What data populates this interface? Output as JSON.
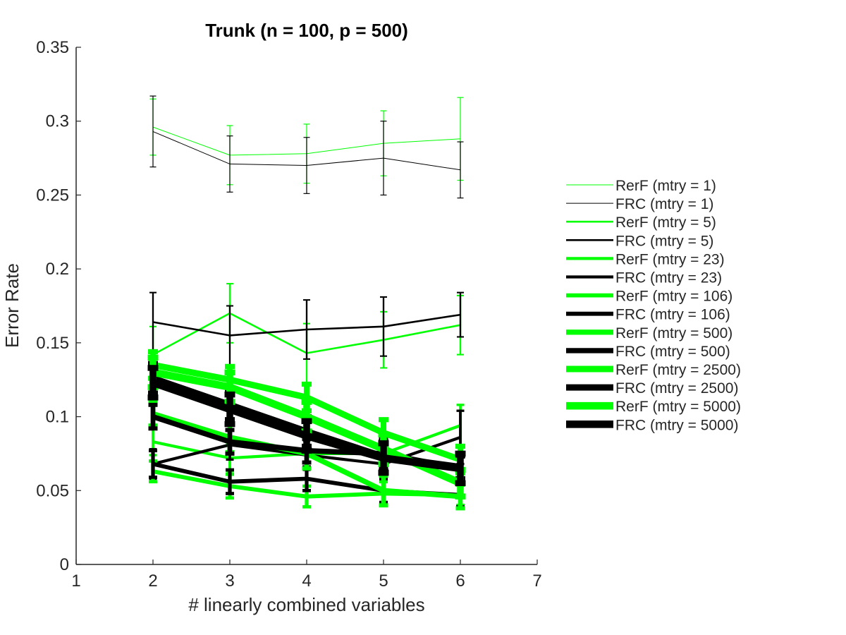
{
  "chart_data": {
    "type": "line",
    "title": "Trunk (n = 100, p = 500)",
    "xlabel": "# linearly combined variables",
    "ylabel": "Error Rate",
    "xlim": [
      1,
      7
    ],
    "ylim": [
      0,
      0.35
    ],
    "xticks": [
      1,
      2,
      3,
      4,
      5,
      6,
      7
    ],
    "xtick_labels": [
      "1",
      "2",
      "3",
      "4",
      "5",
      "6",
      "7"
    ],
    "yticks": [
      0,
      0.05,
      0.1,
      0.15,
      0.2,
      0.25,
      0.3,
      0.35
    ],
    "ytick_labels": [
      "0",
      "0.05",
      "0.1",
      "0.15",
      "0.2",
      "0.25",
      "0.3",
      "0.35"
    ],
    "legend_position": "outside-right",
    "x": [
      2,
      3,
      4,
      5,
      6
    ],
    "colors": {
      "rerf": "#00ff00",
      "frc": "#000000",
      "axis": "#262626"
    },
    "series": [
      {
        "name": "RerF (mtry = 1)",
        "color": "#00ff00",
        "weight": 1,
        "values": [
          0.296,
          0.277,
          0.278,
          0.285,
          0.288
        ],
        "errors": [
          0.019,
          0.02,
          0.02,
          0.022,
          0.028
        ]
      },
      {
        "name": "FRC (mtry = 1)",
        "color": "#000000",
        "weight": 1,
        "values": [
          0.293,
          0.271,
          0.27,
          0.275,
          0.267
        ],
        "errors": [
          0.024,
          0.019,
          0.019,
          0.025,
          0.019
        ]
      },
      {
        "name": "RerF (mtry = 5)",
        "color": "#00ff00",
        "weight": 2,
        "values": [
          0.142,
          0.17,
          0.143,
          0.152,
          0.162
        ],
        "errors": [
          0.019,
          0.02,
          0.02,
          0.019,
          0.02
        ]
      },
      {
        "name": "FRC (mtry = 5)",
        "color": "#000000",
        "weight": 2,
        "values": [
          0.164,
          0.155,
          0.159,
          0.161,
          0.169
        ],
        "errors": [
          0.02,
          0.02,
          0.02,
          0.02,
          0.015
        ]
      },
      {
        "name": "RerF (mtry = 23)",
        "color": "#00ff00",
        "weight": 3,
        "values": [
          0.083,
          0.072,
          0.075,
          0.075,
          0.094
        ],
        "errors": [
          0.009,
          0.009,
          0.009,
          0.009,
          0.014
        ]
      },
      {
        "name": "FRC (mtry = 23)",
        "color": "#000000",
        "weight": 3,
        "values": [
          0.068,
          0.081,
          0.074,
          0.068,
          0.086
        ],
        "errors": [
          0.01,
          0.01,
          0.01,
          0.01,
          0.018
        ]
      },
      {
        "name": "RerF (mtry = 106)",
        "color": "#00ff00",
        "weight": 4,
        "values": [
          0.063,
          0.053,
          0.046,
          0.048,
          0.047
        ],
        "errors": [
          0.007,
          0.008,
          0.007,
          0.008,
          0.007
        ]
      },
      {
        "name": "FRC (mtry = 106)",
        "color": "#000000",
        "weight": 4,
        "values": [
          0.068,
          0.056,
          0.058,
          0.05,
          0.047
        ],
        "errors": [
          0.009,
          0.008,
          0.008,
          0.008,
          0.008
        ]
      },
      {
        "name": "RerF (mtry = 500)",
        "color": "#00ff00",
        "weight": 5,
        "values": [
          0.102,
          0.086,
          0.075,
          0.05,
          0.046
        ],
        "errors": [
          0.008,
          0.01,
          0.01,
          0.01,
          0.008
        ]
      },
      {
        "name": "FRC (mtry = 500)",
        "color": "#000000",
        "weight": 5,
        "values": [
          0.1,
          0.083,
          0.077,
          0.075,
          0.065
        ],
        "errors": [
          0.008,
          0.008,
          0.008,
          0.01,
          0.008
        ]
      },
      {
        "name": "RerF (mtry = 2500)",
        "color": "#00ff00",
        "weight": 6,
        "values": [
          0.135,
          0.125,
          0.113,
          0.089,
          0.071
        ],
        "errors": [
          0.009,
          0.009,
          0.009,
          0.009,
          0.009
        ]
      },
      {
        "name": "FRC (mtry = 2500)",
        "color": "#000000",
        "weight": 6,
        "values": [
          0.126,
          0.108,
          0.09,
          0.073,
          0.066
        ],
        "errors": [
          0.01,
          0.01,
          0.01,
          0.01,
          0.008
        ]
      },
      {
        "name": "RerF (mtry = 5000)",
        "color": "#00ff00",
        "weight": 7,
        "values": [
          0.13,
          0.12,
          0.1,
          0.078,
          0.055
        ],
        "errors": [
          0.01,
          0.01,
          0.01,
          0.01,
          0.009
        ]
      },
      {
        "name": "FRC (mtry = 5000)",
        "color": "#000000",
        "weight": 7,
        "values": [
          0.123,
          0.105,
          0.087,
          0.072,
          0.065
        ],
        "errors": [
          0.01,
          0.01,
          0.01,
          0.01,
          0.01
        ]
      }
    ]
  }
}
